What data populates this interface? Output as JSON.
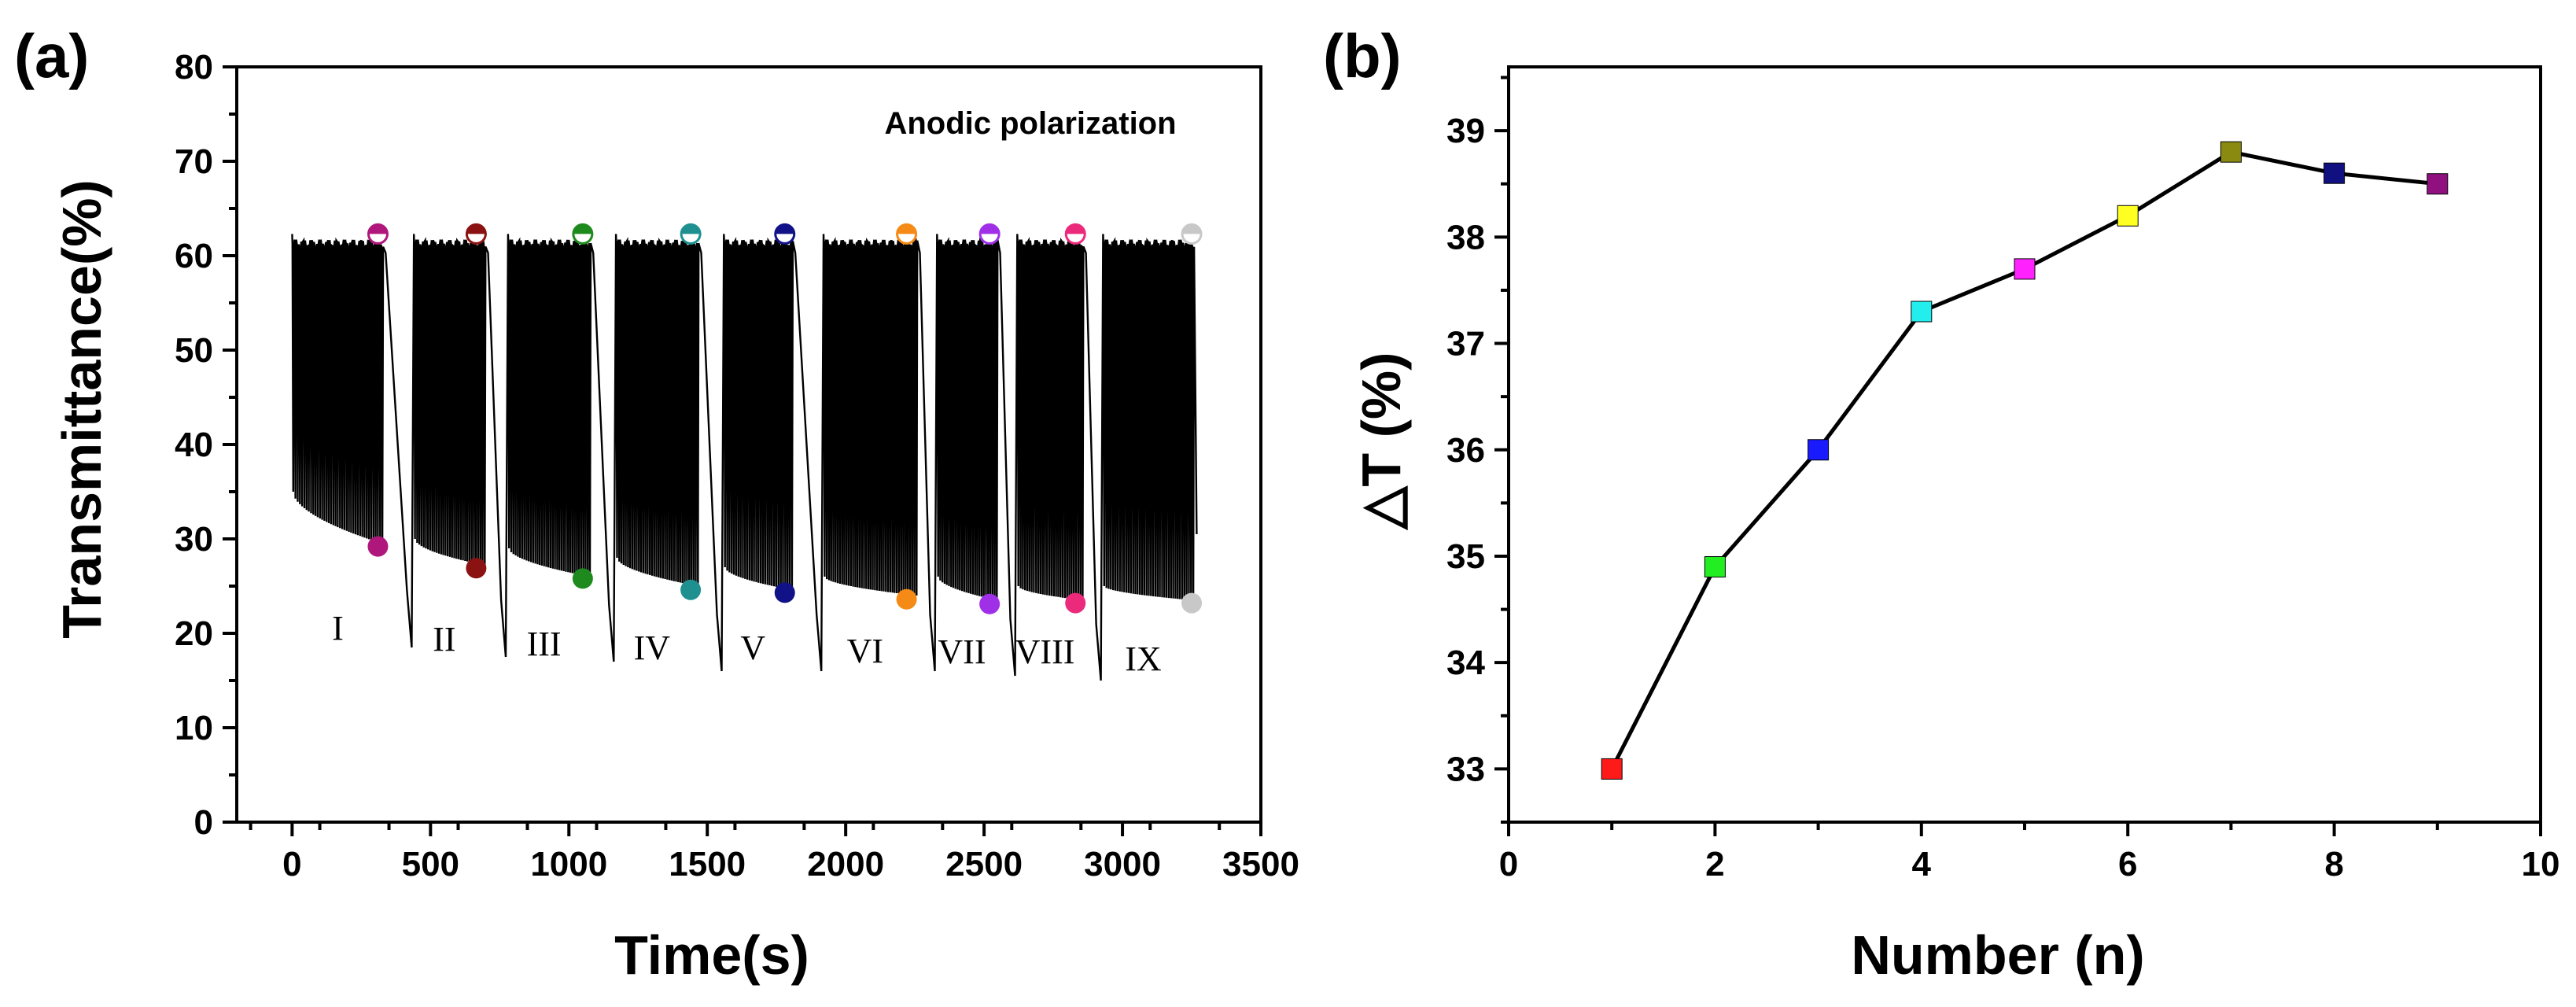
{
  "chart_data": [
    {
      "type": "line",
      "panel_label": "(a)",
      "title": "",
      "xlabel": "Time(s)",
      "ylabel": "Transmittance(%)",
      "xlim": [
        -200,
        3500
      ],
      "ylim": [
        0,
        80
      ],
      "xticks": [
        0,
        500,
        1000,
        1500,
        2000,
        2500,
        3000,
        3500
      ],
      "yticks": [
        0,
        10,
        20,
        30,
        40,
        50,
        60,
        70,
        80
      ],
      "annotation": "Anodic polarization",
      "stages": [
        {
          "label": "I",
          "t_start": 0,
          "t_end": 330,
          "t_marker": 310,
          "bleached": 62.3,
          "colored": 29.2,
          "min_start": 35,
          "min_end": 29.5,
          "dip": 18.5,
          "color": "#b0177d"
        },
        {
          "label": "II",
          "t_start": 440,
          "t_end": 700,
          "t_marker": 665,
          "bleached": 62.3,
          "colored": 26.9,
          "min_start": 30,
          "min_end": 27.2,
          "dip": 17.5,
          "color": "#8b1212"
        },
        {
          "label": "III",
          "t_start": 780,
          "t_end": 1080,
          "t_marker": 1050,
          "bleached": 62.3,
          "colored": 25.8,
          "min_start": 29,
          "min_end": 26.0,
          "dip": 17.0,
          "color": "#1e8a1e"
        },
        {
          "label": "IV",
          "t_start": 1170,
          "t_end": 1470,
          "t_marker": 1440,
          "bleached": 62.3,
          "colored": 24.6,
          "min_start": 28,
          "min_end": 25.0,
          "dip": 16.0,
          "color": "#1e9090"
        },
        {
          "label": "V",
          "t_start": 1560,
          "t_end": 1810,
          "t_marker": 1780,
          "bleached": 62.3,
          "colored": 24.3,
          "min_start": 27,
          "min_end": 24.6,
          "dip": 16.0,
          "color": "#121288"
        },
        {
          "label": "VI",
          "t_start": 1920,
          "t_end": 2260,
          "t_marker": 2220,
          "bleached": 62.3,
          "colored": 23.6,
          "min_start": 26,
          "min_end": 24.0,
          "dip": 16.0,
          "color": "#f58a16"
        },
        {
          "label": "VII",
          "t_start": 2330,
          "t_end": 2550,
          "t_marker": 2520,
          "bleached": 62.3,
          "colored": 23.1,
          "min_start": 26,
          "min_end": 23.5,
          "dip": 15.5,
          "color": "#a030e8"
        },
        {
          "label": "VIII",
          "t_start": 2620,
          "t_end": 2860,
          "t_marker": 2830,
          "bleached": 62.3,
          "colored": 23.2,
          "min_start": 25,
          "min_end": 23.5,
          "dip": 15.0,
          "color": "#ec2a7c"
        },
        {
          "label": "IX",
          "t_start": 2930,
          "t_end": 3260,
          "t_marker": 3250,
          "bleached": 62.3,
          "colored": 23.2,
          "min_start": 25,
          "min_end": 23.5,
          "dip": 15.0,
          "color": "#c8c8c8"
        }
      ]
    },
    {
      "type": "line",
      "panel_label": "(b)",
      "title": "",
      "xlabel": "Number (n)",
      "ylabel": "△T (%)",
      "xlim": [
        0,
        10
      ],
      "ylim": [
        32.5,
        39.6
      ],
      "xticks": [
        0,
        2,
        4,
        6,
        8,
        10
      ],
      "yticks": [
        33,
        34,
        35,
        36,
        37,
        38,
        39
      ],
      "x": [
        1,
        2,
        3,
        4,
        5,
        6,
        7,
        8,
        9
      ],
      "y": [
        33.0,
        34.9,
        36.0,
        37.3,
        37.7,
        38.2,
        38.8,
        38.6,
        38.5
      ],
      "point_colors": [
        "#ff1a1a",
        "#22ee22",
        "#1a1aff",
        "#22eeee",
        "#ff22ff",
        "#ffff22",
        "#8a8a10",
        "#101080",
        "#901080"
      ]
    }
  ]
}
